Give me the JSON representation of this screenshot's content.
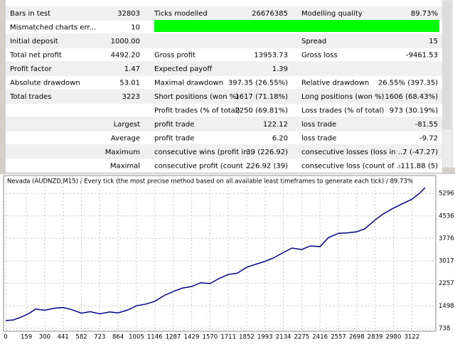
{
  "table": {
    "rows": [
      {
        "left": {
          "label": "Bars in test",
          "value": "32803"
        },
        "middle": {
          "label": "Ticks modelled",
          "value": "26676385"
        },
        "right": {
          "label": "Modelling quality",
          "value": "89.73%"
        }
      },
      {
        "left": {
          "label": "Mismatched charts err...",
          "value": "10"
        }
      },
      {
        "left": {
          "label": "Initial deposit",
          "value": "1000.00"
        },
        "right": {
          "label": "Spread",
          "value": "15"
        }
      },
      {
        "left": {
          "label": "Total net profit",
          "value": "4492.20"
        },
        "middle": {
          "label": "Gross profit",
          "value": "13953.73"
        },
        "right": {
          "label": "Gross loss",
          "value": "-9461.53"
        }
      },
      {
        "left": {
          "label": "Profit factor",
          "value": "1.47"
        },
        "middle": {
          "label": "Expected payoff",
          "value": "1.39"
        }
      },
      {
        "left": {
          "label": "Absolute drawdown",
          "value": "53.01"
        },
        "middle": {
          "label": "Maximal drawdown",
          "value": "397.35 (26.55%)"
        },
        "right": {
          "label": "Relative drawdown",
          "value": "26.55% (397.35)"
        }
      },
      {
        "left": {
          "label": "Total trades",
          "value": "3223"
        },
        "middle": {
          "label": "Short positions (won %)",
          "value": "1617 (71.18%)"
        },
        "right": {
          "label": "Long positions (won %)",
          "value": "1606 (68.43%)"
        }
      },
      {
        "middle": {
          "label": "Profit trades (% of total)",
          "value": "2250 (69.81%)"
        },
        "right": {
          "label": "Loss trades (% of total)",
          "value": "973 (30.19%)"
        }
      },
      {
        "left": {
          "value": "Largest"
        },
        "middle": {
          "label": "profit trade",
          "value": "122.12"
        },
        "right": {
          "label": "loss trade",
          "value": "-81.55"
        }
      },
      {
        "left": {
          "value": "Average"
        },
        "middle": {
          "label": "profit trade",
          "value": "6.20"
        },
        "right": {
          "label": "loss trade",
          "value": "-9.72"
        }
      },
      {
        "left": {
          "value": "Maximum"
        },
        "middle": {
          "label": "consecutive wins (profit in...",
          "value": "39 (226.92)"
        },
        "right": {
          "label": "consecutive losses (loss in ...",
          "value": "7 (-47.27)"
        }
      },
      {
        "left": {
          "value": "Maximal"
        },
        "middle": {
          "label": "consecutive profit (count ...",
          "value": "226.92 (39)"
        },
        "right": {
          "label": "consecutive loss (count of ...",
          "value": "-111.88 (5)"
        }
      }
    ]
  },
  "chart_data": {
    "type": "line",
    "title": "Nevada (AUDNZD,M15) / Every tick (the most precise method based on all available least timeframes to generate each tick) / 89.73%",
    "x": [
      0,
      60,
      120,
      180,
      230,
      300,
      380,
      440,
      500,
      582,
      650,
      723,
      800,
      864,
      940,
      1005,
      1080,
      1146,
      1220,
      1287,
      1360,
      1429,
      1500,
      1570,
      1640,
      1711,
      1780,
      1852,
      1920,
      1993,
      2060,
      2134,
      2200,
      2275,
      2340,
      2416,
      2480,
      2557,
      2620,
      2698,
      2760,
      2839,
      2900,
      2980,
      3050,
      3122,
      3180,
      3223
    ],
    "values": [
      1000,
      1020,
      1120,
      1240,
      1390,
      1350,
      1420,
      1440,
      1380,
      1250,
      1300,
      1230,
      1290,
      1260,
      1360,
      1500,
      1560,
      1650,
      1850,
      1980,
      2100,
      2150,
      2280,
      2250,
      2420,
      2560,
      2600,
      2800,
      2900,
      3000,
      3120,
      3300,
      3450,
      3400,
      3520,
      3500,
      3800,
      3950,
      3960,
      4000,
      4100,
      4400,
      4600,
      4800,
      4950,
      5100,
      5300,
      5492
    ],
    "color": "#00008b",
    "xlim": [
      0,
      3300
    ],
    "ylim": [
      640,
      5900
    ],
    "xticks": [
      0,
      159,
      300,
      441,
      582,
      723,
      864,
      1005,
      1146,
      1287,
      1429,
      1570,
      1711,
      1852,
      1993,
      2134,
      2275,
      2416,
      2557,
      2698,
      2839,
      2980,
      3122
    ],
    "yticks": [
      738,
      1498,
      2257,
      3017,
      3776,
      4536,
      5296
    ],
    "grid": true
  }
}
